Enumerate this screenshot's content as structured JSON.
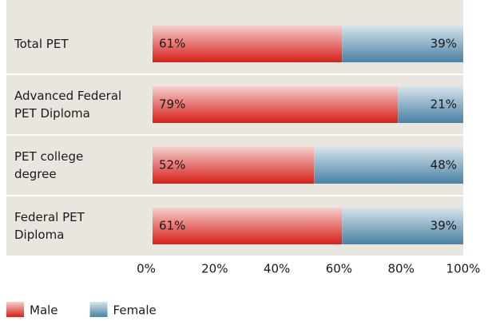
{
  "chart_data": {
    "type": "stacked-bar-horizontal",
    "categories": [
      "Total PET",
      "Advanced Federal\nPET Diploma",
      "PET college\ndegree",
      "Federal PET\nDiploma"
    ],
    "series": [
      {
        "name": "Male",
        "color": "#d7231b",
        "values": [
          61,
          79,
          52,
          61
        ],
        "value_labels": [
          "61%",
          "79%",
          "52%",
          "61%"
        ]
      },
      {
        "name": "Female",
        "color": "#4a84a6",
        "values": [
          39,
          21,
          48,
          39
        ],
        "value_labels": [
          "39%",
          "21%",
          "48%",
          "39%"
        ]
      }
    ],
    "xlim": [
      0,
      100
    ],
    "xticks": [
      {
        "value": 0,
        "label": "0%"
      },
      {
        "value": 20,
        "label": "20%"
      },
      {
        "value": 40,
        "label": "40%"
      },
      {
        "value": 60,
        "label": "60%"
      },
      {
        "value": 80,
        "label": "80%"
      },
      {
        "value": 100,
        "label": "100%"
      }
    ],
    "legend": "bottom-left"
  }
}
